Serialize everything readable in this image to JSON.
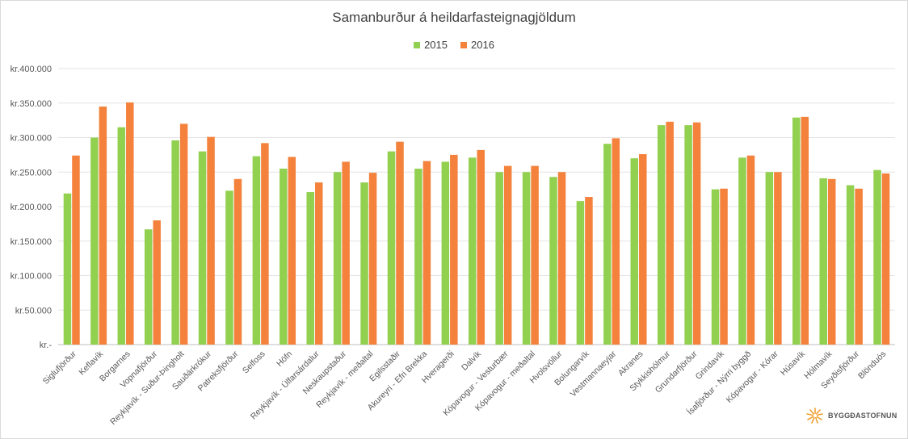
{
  "chart_data": {
    "type": "bar",
    "title": "Samanburður á heildarfasteignagjöldum",
    "categories": [
      "Siglufjörður",
      "Keflavík",
      "Borgarnes",
      "Vopnafjörður",
      "Reykjavík - Suður-Þingholt",
      "Sauðárkrókur",
      "Patreksfjörður",
      "Selfoss",
      "Höfn",
      "Reykjavík - Úlfarsárdalur",
      "Neskaupstaður",
      "Reykjavík - meðaltal",
      "Egilsstaðir",
      "Akureyri - Efri Brekka",
      "Hveragerði",
      "Dalvík",
      "Kópavogur - Vesturbær",
      "Kópavogur - meðaltal",
      "Hvolsvöllur",
      "Bolungarvík",
      "Vestmannaeyjar",
      "Akranes",
      "Stykkishólmur",
      "Grundarfjörður",
      "Grindavík",
      "Ísafjörður - Nýrri byggð",
      "Kópavogur - Kórar",
      "Húsavík",
      "Hólmavík",
      "Seyðisfjörður",
      "Blönduós"
    ],
    "series": [
      {
        "name": "2015",
        "color": "#92d050",
        "values": [
          219000,
          300000,
          315000,
          167000,
          296000,
          280000,
          223000,
          273000,
          255000,
          221000,
          250000,
          235000,
          280000,
          255000,
          265000,
          271000,
          250000,
          250000,
          243000,
          208000,
          291000,
          270000,
          318000,
          318000,
          225000,
          271000,
          250000,
          329000,
          241000,
          231000,
          253000
        ]
      },
      {
        "name": "2016",
        "color": "#f4823c",
        "values": [
          274000,
          345000,
          351000,
          180000,
          320000,
          301000,
          240000,
          292000,
          272000,
          235000,
          265000,
          249000,
          294000,
          266000,
          275000,
          282000,
          259000,
          259000,
          250000,
          214000,
          299000,
          276000,
          323000,
          322000,
          226000,
          274000,
          250000,
          330000,
          240000,
          226000,
          248000
        ]
      }
    ],
    "ylim": [
      0,
      400000
    ],
    "yticks": [
      {
        "value": 0,
        "label": "kr.-"
      },
      {
        "value": 50000,
        "label": "kr.50.000"
      },
      {
        "value": 100000,
        "label": "kr.100.000"
      },
      {
        "value": 150000,
        "label": "kr.150.000"
      },
      {
        "value": 200000,
        "label": "kr.200.000"
      },
      {
        "value": 250000,
        "label": "kr.250.000"
      },
      {
        "value": 300000,
        "label": "kr.300.000"
      },
      {
        "value": 350000,
        "label": "kr.350.000"
      },
      {
        "value": 400000,
        "label": "kr.400.000"
      }
    ],
    "xlabel": "",
    "ylabel": "",
    "grid": true,
    "legend_position": "top"
  },
  "logo": {
    "text": "BYGGÐASTOFNUN"
  }
}
